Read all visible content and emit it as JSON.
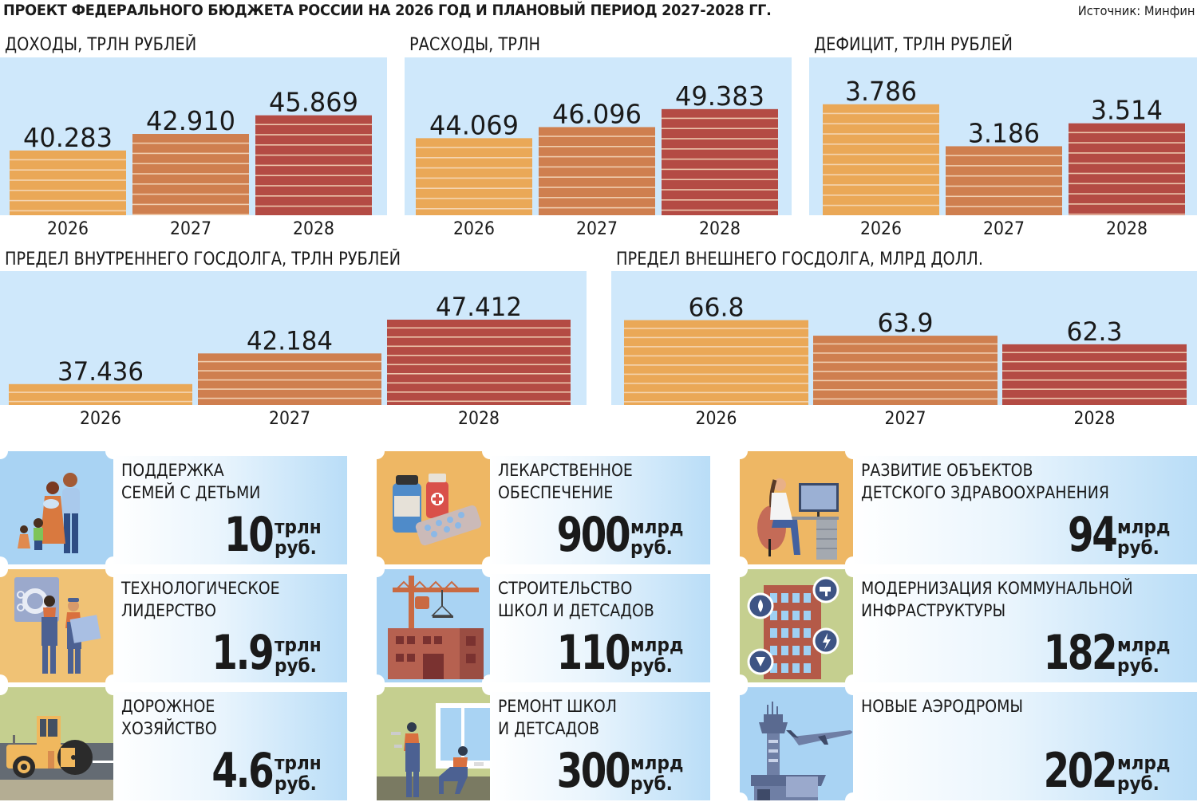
{
  "header": {
    "title": "ПРОЕКТ ФЕДЕРАЛЬНОГО БЮДЖЕТА РОССИИ НА 2026 ГОД И ПЛАНОВЫЙ ПЕРИОД 2027-2028 ГГ.",
    "source": "Источник: Минфин"
  },
  "colors": {
    "panel_bg": "#cfe8fb",
    "bar_2026": "#eaa857",
    "bar_2027": "#cf7f4f",
    "bar_2028": "#b44b44",
    "stripe": "#f6dcc0"
  },
  "chart_data": [
    {
      "type": "bar",
      "title": "ДОХОДЫ, ТРЛН РУБЛЕЙ",
      "categories": [
        "2026",
        "2027",
        "2028"
      ],
      "values": [
        40.283,
        42.91,
        45.869
      ],
      "labels": [
        "40.283",
        "42.910",
        "45.869"
      ],
      "ylim": [
        30,
        50
      ]
    },
    {
      "type": "bar",
      "title": "РАСХОДЫ, ТРЛН",
      "categories": [
        "2026",
        "2027",
        "2028"
      ],
      "values": [
        44.069,
        46.096,
        49.383
      ],
      "labels": [
        "44.069",
        "46.096",
        "49.383"
      ],
      "ylim": [
        30,
        53
      ]
    },
    {
      "type": "bar",
      "title": "ДЕФИЦИТ, ТРЛН РУБЛЕЙ",
      "categories": [
        "2026",
        "2027",
        "2028"
      ],
      "values": [
        3.786,
        3.186,
        3.514
      ],
      "labels": [
        "3.786",
        "3.186",
        "3.514"
      ],
      "ylim": [
        2.2,
        4.0
      ]
    },
    {
      "type": "bar",
      "title": "ПРЕДЕЛ ВНУТРЕННЕГО ГОСДОЛГА, ТРЛН РУБЛЕЙ",
      "categories": [
        "2026",
        "2027",
        "2028"
      ],
      "values": [
        37.436,
        42.184,
        47.412
      ],
      "labels": [
        "37.436",
        "42.184",
        "47.412"
      ],
      "ylim": [
        34.2,
        50
      ]
    },
    {
      "type": "bar",
      "title": "ПРЕДЕЛ ВНЕШНЕГО ГОСДОЛГА,  МЛРД ДОЛЛ.",
      "categories": [
        "2026",
        "2027",
        "2028"
      ],
      "values": [
        66.8,
        63.9,
        62.3
      ],
      "labels": [
        "66.8",
        "63.9",
        "62.3"
      ],
      "ylim": [
        51,
        70
      ]
    }
  ],
  "cards": [
    {
      "label": "ПОДДЕРЖКА\nСЕМЕЙ С ДЕТЬМИ",
      "amount": "10",
      "unit_top": "трлн",
      "unit_bottom": "руб.",
      "icon": "family-icon",
      "icon_bg": "#a9d3f3"
    },
    {
      "label": "ЛЕКАРСТВЕННОЕ\nОБЕСПЕЧЕНИЕ",
      "amount": "900",
      "unit_top": "млрд",
      "unit_bottom": "руб.",
      "icon": "medicine-icon",
      "icon_bg": "#eeb764"
    },
    {
      "label": "РАЗВИТИЕ ОБЪЕКТОВ\nДЕТСКОГО ЗДРАВООХРАНЕНИЯ",
      "amount": "94",
      "unit_top": "млрд",
      "unit_bottom": "руб.",
      "icon": "doctor-computer-icon",
      "icon_bg": "#eeb764"
    },
    {
      "label": "ТЕХНОЛОГИЧЕСКОЕ\nЛИДЕРСТВО",
      "amount": "1.9",
      "unit_top": "трлн",
      "unit_bottom": "руб.",
      "icon": "engineers-icon",
      "icon_bg": "#f0c275"
    },
    {
      "label": "СТРОИТЕЛЬСТВО\nШКОЛ И ДЕТСАДОВ",
      "amount": "110",
      "unit_top": "млрд",
      "unit_bottom": "руб.",
      "icon": "construction-crane-icon",
      "icon_bg": "#a9d3f3"
    },
    {
      "label": "МОДЕРНИЗАЦИЯ КОММУНАЛЬНОЙ\nИНФРАСТРУКТУРЫ",
      "amount": "182",
      "unit_top": "млрд",
      "unit_bottom": "руб.",
      "icon": "utilities-building-icon",
      "icon_bg": "#c5cf8f"
    },
    {
      "label": "ДОРОЖНОЕ\nХОЗЯЙСТВО",
      "amount": "4.6",
      "unit_top": "трлн",
      "unit_bottom": "руб.",
      "icon": "road-roller-icon",
      "icon_bg": "#c5cf8f"
    },
    {
      "label": "РЕМОНТ ШКОЛ\nИ ДЕТСАДОВ",
      "amount": "300",
      "unit_top": "млрд",
      "unit_bottom": "руб.",
      "icon": "renovation-workers-icon",
      "icon_bg": "#c5cf8f"
    },
    {
      "label": "НОВЫЕ АЭРОДРОМЫ",
      "amount": "202",
      "unit_top": "млрд",
      "unit_bottom": "руб.",
      "icon": "airport-icon",
      "icon_bg": "#a9d3f3"
    }
  ]
}
